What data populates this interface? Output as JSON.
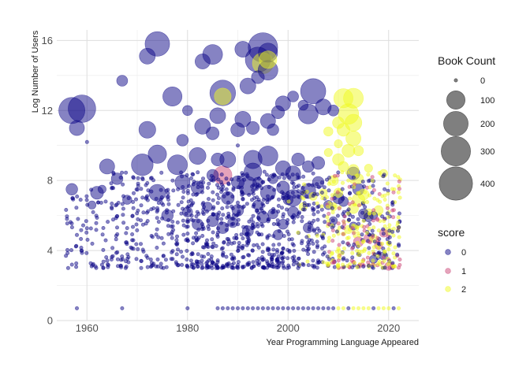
{
  "chart_data": {
    "type": "scatter",
    "xlabel": "Year Programming Language Appeared",
    "ylabel": "Log Number of Users",
    "xlim": [
      1954,
      2026
    ],
    "ylim": [
      0,
      16.6
    ],
    "x_ticks": [
      1960,
      1980,
      2000,
      2020
    ],
    "y_ticks": [
      0,
      4,
      8,
      12,
      16
    ],
    "grid": true,
    "size_legend": {
      "title": "Book Count",
      "entries": [
        {
          "label": "0",
          "value": 0
        },
        {
          "label": "100",
          "value": 100
        },
        {
          "label": "200",
          "value": 200
        },
        {
          "label": "300",
          "value": 300
        },
        {
          "label": "400",
          "value": 400
        }
      ]
    },
    "color_legend": {
      "title": "score",
      "entries": [
        {
          "label": "0",
          "color": "#0d0887"
        },
        {
          "label": "1",
          "color": "#cc4778"
        },
        {
          "label": "2",
          "color": "#f0f921"
        }
      ]
    },
    "points": [
      [
        1957,
        12.0,
        230,
        0
      ],
      [
        1959,
        12.1,
        260,
        0
      ],
      [
        1958,
        11.0,
        60,
        0
      ],
      [
        1974,
        15.8,
        200,
        0
      ],
      [
        1972,
        15.1,
        70,
        0
      ],
      [
        1977,
        12.8,
        110,
        0
      ],
      [
        1972,
        10.9,
        80,
        0
      ],
      [
        1967,
        13.7,
        25,
        0
      ],
      [
        1960,
        10.2,
        0,
        0
      ],
      [
        1983,
        14.8,
        60,
        0
      ],
      [
        1985,
        15.2,
        120,
        0
      ],
      [
        1987,
        13.0,
        220,
        0
      ],
      [
        1991,
        15.5,
        70,
        0
      ],
      [
        1994,
        14.9,
        210,
        0
      ],
      [
        1995,
        15.6,
        300,
        0
      ],
      [
        1996,
        15.3,
        110,
        0
      ],
      [
        1996,
        14.3,
        120,
        0
      ],
      [
        1994,
        13.9,
        40,
        0
      ],
      [
        1992,
        13.4,
        70,
        0
      ],
      [
        1999,
        12.4,
        60,
        0
      ],
      [
        2005,
        13.1,
        210,
        0
      ],
      [
        2004,
        11.8,
        120,
        0
      ],
      [
        2007,
        12.2,
        70,
        0
      ],
      [
        1980,
        12.0,
        20,
        0
      ],
      [
        1979,
        10.3,
        30,
        0
      ],
      [
        1983,
        11.1,
        70,
        0
      ],
      [
        1986,
        11.7,
        70,
        0
      ],
      [
        1985,
        10.7,
        40,
        0
      ],
      [
        1991,
        11.5,
        70,
        0
      ],
      [
        1990,
        10.9,
        50,
        0
      ],
      [
        1993,
        11.0,
        40,
        0
      ],
      [
        1996,
        11.4,
        60,
        0
      ],
      [
        2001,
        12.8,
        25,
        0
      ],
      [
        2003,
        12.3,
        20,
        0
      ],
      [
        1997,
        10.9,
        30,
        0
      ],
      [
        1998,
        11.9,
        40,
        0
      ],
      [
        2009,
        12.0,
        25,
        0
      ],
      [
        1990,
        10.0,
        0,
        0
      ],
      [
        1974,
        9.5,
        100,
        0
      ],
      [
        1971,
        8.9,
        150,
        0
      ],
      [
        1964,
        8.8,
        60,
        0
      ],
      [
        1962,
        7.3,
        40,
        0
      ],
      [
        1957,
        7.5,
        30,
        0
      ],
      [
        1978,
        8.9,
        120,
        0
      ],
      [
        1982,
        9.4,
        80,
        0
      ],
      [
        1986,
        9.2,
        40,
        0
      ],
      [
        1988,
        9.2,
        70,
        0
      ],
      [
        1993,
        9.2,
        100,
        0
      ],
      [
        1996,
        9.4,
        120,
        0
      ],
      [
        1999,
        8.7,
        60,
        0
      ],
      [
        2002,
        9.2,
        40,
        0
      ],
      [
        2001,
        8.4,
        60,
        0
      ],
      [
        2004,
        8.8,
        30,
        0
      ],
      [
        2006,
        9.0,
        40,
        0
      ],
      [
        1974,
        7.3,
        80,
        0
      ],
      [
        1979,
        7.9,
        60,
        0
      ],
      [
        1982,
        7.6,
        40,
        0
      ],
      [
        1985,
        8.3,
        30,
        0
      ],
      [
        1990,
        7.9,
        40,
        0
      ],
      [
        1992,
        7.7,
        100,
        0
      ],
      [
        1996,
        7.3,
        60,
        0
      ],
      [
        1999,
        7.6,
        40,
        0
      ],
      [
        2001,
        7.0,
        80,
        0
      ],
      [
        2004,
        7.4,
        60,
        0
      ],
      [
        2006,
        7.9,
        30,
        0
      ],
      [
        1993,
        8.5,
        90,
        0
      ],
      [
        1966,
        8.1,
        30,
        0
      ],
      [
        1988,
        7.0,
        40,
        0
      ],
      [
        1987,
        8.3,
        100,
        1
      ],
      [
        1987,
        12.8,
        80,
        2
      ],
      [
        1995,
        14.7,
        140,
        2
      ],
      [
        1996,
        14.9,
        90,
        2
      ],
      [
        2011,
        12.7,
        110,
        2
      ],
      [
        2013,
        12.7,
        120,
        2
      ],
      [
        2012,
        11.8,
        130,
        2
      ],
      [
        2013,
        11.3,
        80,
        2
      ],
      [
        2013,
        10.4,
        60,
        2
      ],
      [
        2011,
        10.9,
        40,
        2
      ],
      [
        2010,
        11.3,
        30,
        2
      ],
      [
        2008,
        10.8,
        15,
        2
      ],
      [
        2010,
        9.2,
        30,
        2
      ],
      [
        2009,
        8.0,
        20,
        2
      ],
      [
        2012,
        9.7,
        40,
        2
      ],
      [
        2014,
        9.7,
        20,
        2
      ],
      [
        2011,
        8.8,
        20,
        2
      ],
      [
        2008,
        9.6,
        10,
        2
      ],
      [
        2010,
        10.1,
        10,
        2
      ],
      [
        2013,
        8.6,
        25,
        2
      ],
      [
        2016,
        8.7,
        10,
        2
      ],
      [
        2019,
        8.4,
        10,
        2
      ],
      [
        2014,
        8.1,
        20,
        2
      ],
      [
        2015,
        7.2,
        25,
        2
      ],
      [
        2014,
        6.9,
        40,
        2
      ],
      [
        2013,
        6.4,
        20,
        2
      ],
      [
        2016,
        6.1,
        20,
        2
      ],
      [
        2018,
        6.3,
        15,
        2
      ],
      [
        2020,
        5.1,
        10,
        2
      ],
      [
        2017,
        4.7,
        10,
        2
      ],
      [
        2012,
        5.2,
        10,
        2
      ],
      [
        2010,
        7.3,
        15,
        2
      ],
      [
        2009,
        6.5,
        10,
        2
      ],
      [
        2007,
        7.3,
        10,
        2
      ],
      [
        2005,
        7.1,
        10,
        2
      ],
      [
        2003,
        6.5,
        10,
        2
      ],
      [
        2013,
        8.4,
        40,
        0
      ],
      [
        2014,
        7.5,
        30,
        0
      ],
      [
        2015,
        6.1,
        20,
        0
      ],
      [
        2010,
        7.0,
        30,
        0
      ],
      [
        2011,
        6.8,
        20,
        0
      ],
      [
        2016,
        5.9,
        15,
        0
      ],
      [
        2017,
        6.0,
        10,
        0
      ],
      [
        2008,
        6.6,
        15,
        0
      ],
      [
        2009,
        5.7,
        10,
        0
      ],
      [
        2013,
        5.4,
        10,
        0
      ],
      [
        2014,
        4.5,
        20,
        1
      ],
      [
        2016,
        4.7,
        15,
        1
      ],
      [
        2018,
        4.3,
        10,
        1
      ],
      [
        2020,
        3.1,
        10,
        1
      ],
      [
        2019,
        5.0,
        10,
        1
      ],
      [
        2017,
        3.5,
        10,
        0
      ],
      [
        2019,
        3.7,
        10,
        0
      ],
      [
        1976,
        6.0,
        30,
        0
      ],
      [
        1980,
        6.2,
        20,
        0
      ],
      [
        1982,
        5.5,
        25,
        0
      ],
      [
        1985,
        5.7,
        30,
        0
      ],
      [
        1987,
        5.3,
        30,
        0
      ],
      [
        1990,
        6.3,
        30,
        0
      ],
      [
        1992,
        5.1,
        25,
        0
      ],
      [
        1995,
        5.9,
        30,
        0
      ],
      [
        1997,
        6.1,
        20,
        0
      ],
      [
        1999,
        5.5,
        20,
        0
      ],
      [
        2001,
        6.2,
        25,
        0
      ],
      [
        2004,
        5.3,
        20,
        0
      ],
      [
        1984,
        6.5,
        15,
        0
      ],
      [
        1989,
        5.6,
        20,
        0
      ],
      [
        1994,
        6.6,
        20,
        0
      ],
      [
        1998,
        4.9,
        20,
        0
      ],
      [
        2000,
        6.9,
        20,
        0
      ],
      [
        1997,
        8.1,
        20,
        0
      ],
      [
        1994,
        7.9,
        20,
        0
      ],
      [
        1968,
        6.9,
        15,
        0
      ],
      [
        1961,
        6.6,
        10,
        0
      ],
      [
        1963,
        7.5,
        10,
        0
      ]
    ],
    "base_years": [
      1956,
      1957,
      1958,
      1959,
      1960,
      1961,
      1962,
      1963,
      1964,
      1965,
      1966,
      1967,
      1968,
      1969,
      1970,
      1971,
      1972,
      1973,
      1974,
      1975,
      1976,
      1977,
      1978,
      1979,
      1980,
      1981,
      1982,
      1983,
      1984,
      1985,
      1986,
      1987,
      1988,
      1989,
      1990,
      1991,
      1992,
      1993,
      1994,
      1995,
      1996,
      1997,
      1998,
      1999,
      2000,
      2001,
      2002,
      2003,
      2004,
      2005,
      2006,
      2007,
      2008,
      2009,
      2010,
      2011,
      2012,
      2013,
      2014,
      2015,
      2016,
      2017,
      2018,
      2019,
      2020,
      2021,
      2022
    ],
    "bottom_row": {
      "y": 0.7,
      "years": [
        1958,
        1967,
        1980,
        1986,
        1987,
        1988,
        1989,
        1990,
        1991,
        1992,
        1993,
        1994,
        1995,
        1996,
        1997,
        1998,
        1999,
        2000,
        2001,
        2002,
        2003,
        2004,
        2005,
        2006,
        2007,
        2008,
        2009,
        2010,
        2011,
        2012,
        2013,
        2014,
        2015,
        2016,
        2017,
        2018,
        2019,
        2020,
        2021,
        2022
      ]
    }
  }
}
